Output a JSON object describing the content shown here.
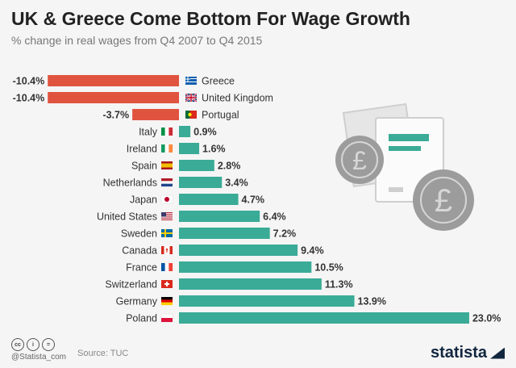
{
  "title": "UK & Greece Come Bottom For Wage Growth",
  "subtitle": "% change in real wages from Q4 2007 to Q4 2015",
  "footer": {
    "handle": "@Statista_com",
    "source": "Source: TUC",
    "brand": "statista"
  },
  "colors": {
    "negative": "#e0533f",
    "positive": "#3aab96"
  },
  "icons": [
    "creative-commons-icon",
    "attribution-icon",
    "no-derivatives-icon",
    "pound-coin-icon",
    "payslip-icon"
  ],
  "chart_data": {
    "type": "bar",
    "orientation": "horizontal",
    "categories": [
      "Greece",
      "United Kingdom",
      "Portugal",
      "Italy",
      "Ireland",
      "Spain",
      "Netherlands",
      "Japan",
      "United States",
      "Sweden",
      "Canada",
      "France",
      "Switzerland",
      "Germany",
      "Poland"
    ],
    "values": [
      -10.4,
      -10.4,
      -3.7,
      0.9,
      1.6,
      2.8,
      3.4,
      4.7,
      6.4,
      7.2,
      9.4,
      10.5,
      11.3,
      13.9,
      23.0
    ],
    "value_labels": [
      "-10.4%",
      "-10.4%",
      "-3.7%",
      "0.9%",
      "1.6%",
      "2.8%",
      "3.4%",
      "4.7%",
      "6.4%",
      "7.2%",
      "9.4%",
      "10.5%",
      "11.3%",
      "13.9%",
      "23.0%"
    ],
    "flags": [
      "greece",
      "united-kingdom",
      "portugal",
      "italy",
      "ireland",
      "spain",
      "netherlands",
      "japan",
      "united-states",
      "sweden",
      "canada",
      "france",
      "switzerland",
      "germany",
      "poland"
    ],
    "title": "UK & Greece Come Bottom For Wage Growth",
    "xlabel": "",
    "ylabel": "",
    "xlim": [
      -10.4,
      23.0
    ],
    "grid": false,
    "legend": "none"
  }
}
